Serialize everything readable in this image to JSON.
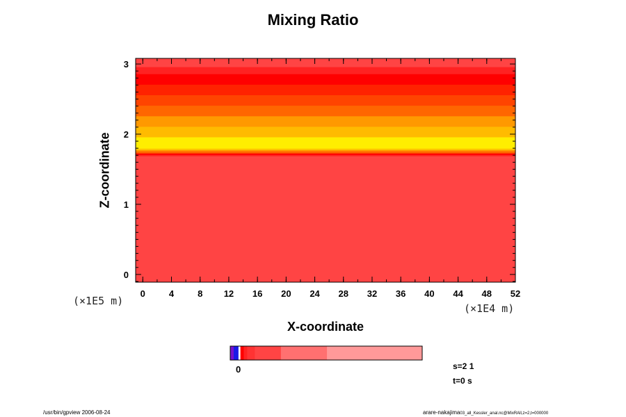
{
  "chart_data": {
    "type": "heatmap",
    "title": "Mixing Ratio",
    "xlabel": "X-coordinate",
    "ylabel": "Z-coordinate",
    "x_scale_label": "(×1E4 m)",
    "y_scale_label": "(×1E5 m)",
    "xlim": [
      -1.0,
      52.0
    ],
    "ylim": [
      -0.11,
      3.08
    ],
    "x_ticks": [
      0,
      4,
      8,
      12,
      16,
      20,
      24,
      28,
      32,
      36,
      40,
      44,
      48,
      52
    ],
    "y_ticks": [
      0,
      1,
      2,
      3
    ],
    "x_minor_step": 2,
    "y_minor_step": 0.1,
    "bands": [
      {
        "z0": -0.11,
        "z1": 1.69,
        "color": "#ff4444"
      },
      {
        "z0": 1.69,
        "z1": 1.71,
        "color": "#ff2222"
      },
      {
        "z0": 1.71,
        "z1": 1.73,
        "color": "#ff0000"
      },
      {
        "z0": 1.73,
        "z1": 1.76,
        "color": "#ff6600"
      },
      {
        "z0": 1.76,
        "z1": 1.78,
        "color": "#ff9900"
      },
      {
        "z0": 1.78,
        "z1": 1.8,
        "color": "#ffcc00"
      },
      {
        "z0": 1.8,
        "z1": 1.96,
        "color": "#ffee00"
      },
      {
        "z0": 1.96,
        "z1": 2.11,
        "color": "#ffbb00"
      },
      {
        "z0": 2.11,
        "z1": 2.26,
        "color": "#ff9900"
      },
      {
        "z0": 2.26,
        "z1": 2.41,
        "color": "#ff6600"
      },
      {
        "z0": 2.41,
        "z1": 2.56,
        "color": "#ff4400"
      },
      {
        "z0": 2.56,
        "z1": 2.71,
        "color": "#ff2200"
      },
      {
        "z0": 2.71,
        "z1": 2.86,
        "color": "#ff0000"
      },
      {
        "z0": 2.86,
        "z1": 2.96,
        "color": "#ff2222"
      },
      {
        "z0": 2.96,
        "z1": 3.08,
        "color": "#ff4444"
      }
    ],
    "colorbar": {
      "label": "0",
      "segments": [
        {
          "w": 0.018,
          "color": "#7711cc"
        },
        {
          "w": 0.025,
          "color": "#1a1ae6"
        },
        {
          "w": 0.01,
          "color": "#ffffff"
        },
        {
          "w": 0.018,
          "color": "#ff0000"
        },
        {
          "w": 0.018,
          "color": "#ff2222"
        },
        {
          "w": 0.04,
          "color": "#ff3333"
        },
        {
          "w": 0.135,
          "color": "#ff4444"
        },
        {
          "w": 0.24,
          "color": "#ff7070"
        },
        {
          "w": 0.496,
          "color": "#ff9999"
        }
      ]
    }
  },
  "info": {
    "section": "s=2 1",
    "time": "t=0 s"
  },
  "footer": {
    "left": "/usr/bin/gpview 2006-08-24",
    "right": "arare-nakajima",
    "right_small": "03_all_Kessler_anal.nc@MixRAll,z=2,t=000000"
  }
}
